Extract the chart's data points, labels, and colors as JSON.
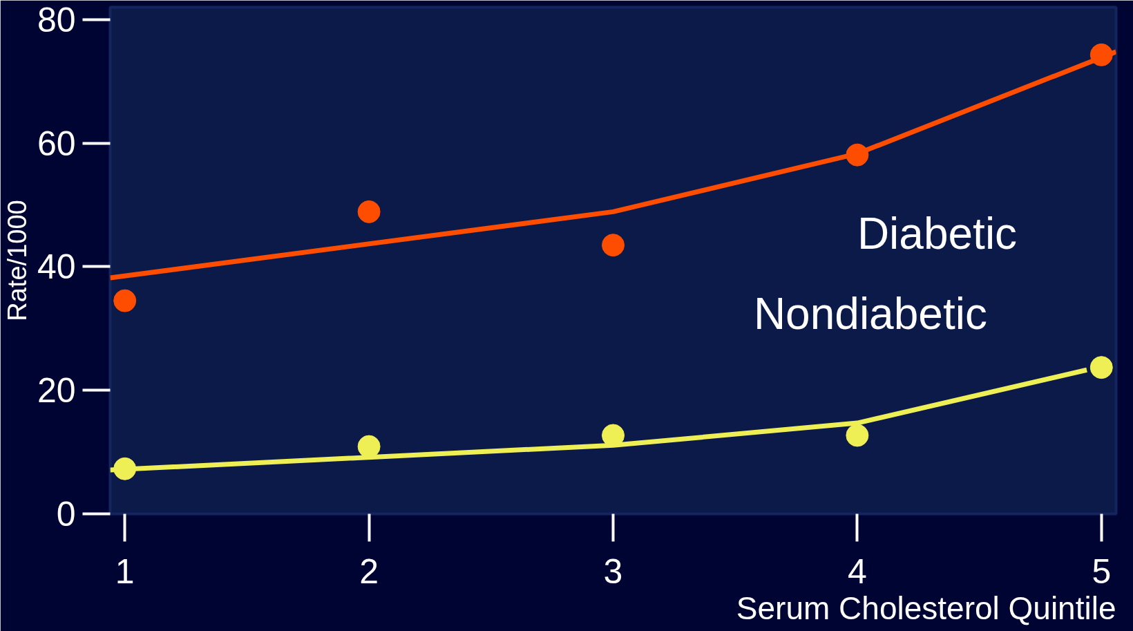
{
  "chart_data": {
    "type": "scatter",
    "xlabel": "Serum Cholesterol Quintile",
    "ylabel": "Rate/1000",
    "xlim": [
      0.94,
      5.06
    ],
    "ylim": [
      0,
      82
    ],
    "xticks": [
      1,
      2,
      3,
      4,
      5
    ],
    "yticks": [
      0,
      20,
      40,
      60,
      80
    ],
    "grid": false,
    "marker": "circle",
    "series": [
      {
        "name": "Diabetic",
        "color": "#ff4d00",
        "x": [
          1,
          2,
          3,
          4,
          5
        ],
        "values": [
          34.5,
          48.9,
          43.5,
          58.1,
          74.3
        ]
      },
      {
        "name": "Nondiabetic",
        "color": "#eeee55",
        "x": [
          1,
          2,
          3,
          4,
          5
        ],
        "values": [
          7.3,
          10.9,
          12.7,
          12.7,
          23.7
        ]
      },
      {
        "type": "line",
        "marker": "none",
        "color": "#ff4d00",
        "x": [
          0.94,
          3,
          4,
          5.06
        ],
        "values": [
          38.2,
          48.9,
          58.3,
          74.8
        ]
      },
      {
        "type": "line",
        "marker": "none",
        "color": "#eeee55",
        "x": [
          0.94,
          3,
          4,
          4.94
        ],
        "values": [
          7.1,
          11.1,
          14.7,
          23.3
        ]
      }
    ]
  }
}
